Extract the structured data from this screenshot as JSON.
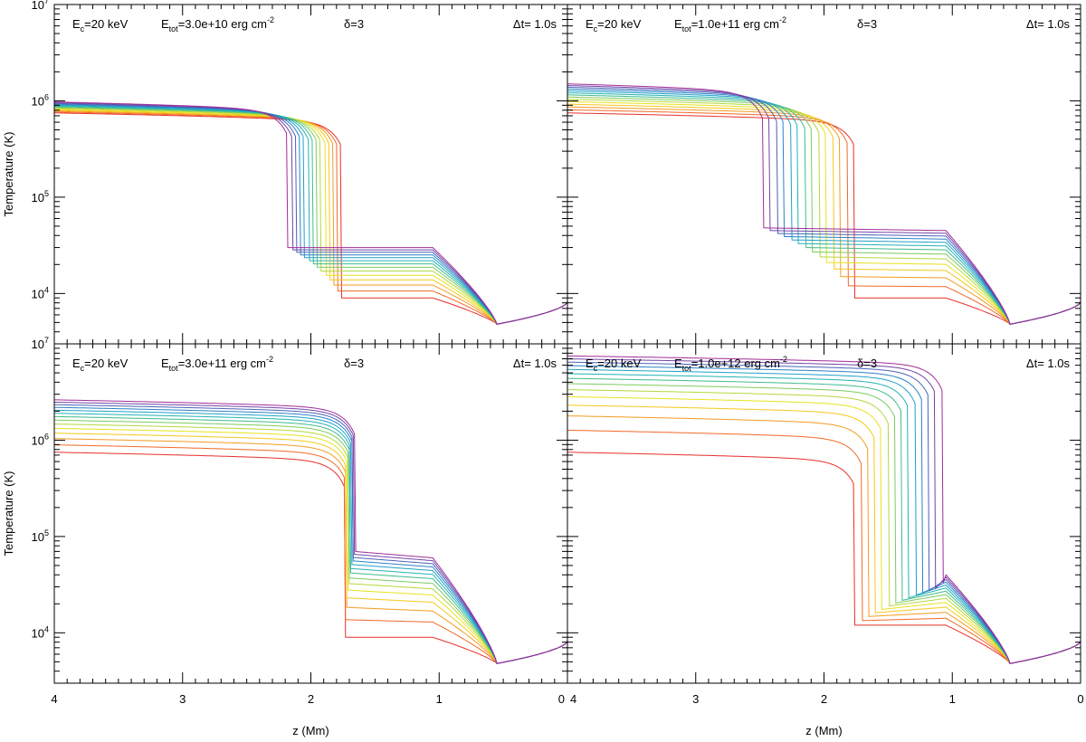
{
  "chart_data": {
    "type": "line",
    "figure": {
      "xlabel": "z (Mm)",
      "ylabel": "Temperature (K)",
      "xlim": [
        4,
        0
      ],
      "ylim": [
        3000,
        10000000
      ],
      "yscale": "log",
      "xticks": [
        4,
        3,
        2,
        1,
        0
      ],
      "xtick_labels": [
        "4",
        "3",
        "2",
        "1",
        "0"
      ],
      "yticks": [
        10000,
        100000,
        1000000,
        10000000
      ],
      "ytick_labels": [
        {
          "base": "10",
          "exp": "4"
        },
        {
          "base": "10",
          "exp": "5"
        },
        {
          "base": "10",
          "exp": "6"
        },
        {
          "base": "10",
          "exp": "7"
        }
      ],
      "n_curves": 14,
      "curve_color_order": "red (earliest) → orange → yellow → green → cyan → blue → purple (latest)"
    },
    "panels": [
      {
        "id": "a",
        "annotation": {
          "ec_main": "E",
          "ec_sub": "c",
          "ec_value": "=20 keV",
          "etot_main": "E",
          "etot_sub": "tot",
          "etot_value": "=3.0e+10 erg cm",
          "etot_sup": "-2",
          "delta": "δ=3",
          "dt": "Δt= 1.0s"
        },
        "model": {
          "T_start": 600000,
          "T_end": 780000,
          "jump_start": 1.76,
          "jump_end": 2.18,
          "mid_start": 9000,
          "mid_end": 30000,
          "shelf_start": 9000,
          "shelf_end": 30000
        }
      },
      {
        "id": "b",
        "annotation": {
          "ec_main": "E",
          "ec_sub": "c",
          "ec_value": "=20 keV",
          "etot_main": "E",
          "etot_sub": "tot",
          "etot_value": "=1.0e+11 erg cm",
          "etot_sup": "-2",
          "delta": "δ=3",
          "dt": "Δt= 1.0s"
        },
        "model": {
          "T_start": 600000,
          "T_end": 1200000,
          "jump_start": 1.76,
          "jump_end": 2.48,
          "mid_start": 9000,
          "mid_end": 45000,
          "shelf_start": 9000,
          "shelf_end": 48000
        }
      },
      {
        "id": "c",
        "annotation": {
          "ec_main": "E",
          "ec_sub": "c",
          "ec_value": "=20 keV",
          "etot_main": "E",
          "etot_sub": "tot",
          "etot_value": "=3.0e+11 erg cm",
          "etot_sup": "-2",
          "delta": "δ=3",
          "dt": "Δt= 1.0s"
        },
        "model": {
          "T_start": 600000,
          "T_end": 2100000,
          "jump_start": 1.74,
          "jump_end": 1.66,
          "mid_start": 9000,
          "mid_end": 60000,
          "shelf_start": 9000,
          "shelf_end": 70000
        }
      },
      {
        "id": "d",
        "annotation": {
          "ec_main": "E",
          "ec_sub": "c",
          "ec_value": "=20 keV",
          "etot_main": "E",
          "etot_sub": "tot",
          "etot_value": "=1.0e+12 erg cm",
          "etot_sup": "-2",
          "delta": "δ=3",
          "dt": "Δt= 1.0s"
        },
        "model": {
          "T_start": 600000,
          "T_end": 6000000,
          "jump_start": 1.76,
          "jump_end": 1.08,
          "mid_start": 12000,
          "mid_end": 40000,
          "shelf_start": 12000,
          "shelf_end": 30000
        }
      }
    ],
    "colors": [
      "#e8302a",
      "#f06a28",
      "#f59a20",
      "#f5c81c",
      "#e6e31e",
      "#b4d83c",
      "#7ccb5e",
      "#3fbc8c",
      "#22b2b4",
      "#1fa0c8",
      "#2a80c6",
      "#4a62b8",
      "#7244a8",
      "#a02c98"
    ],
    "axis_color": "#000000"
  }
}
